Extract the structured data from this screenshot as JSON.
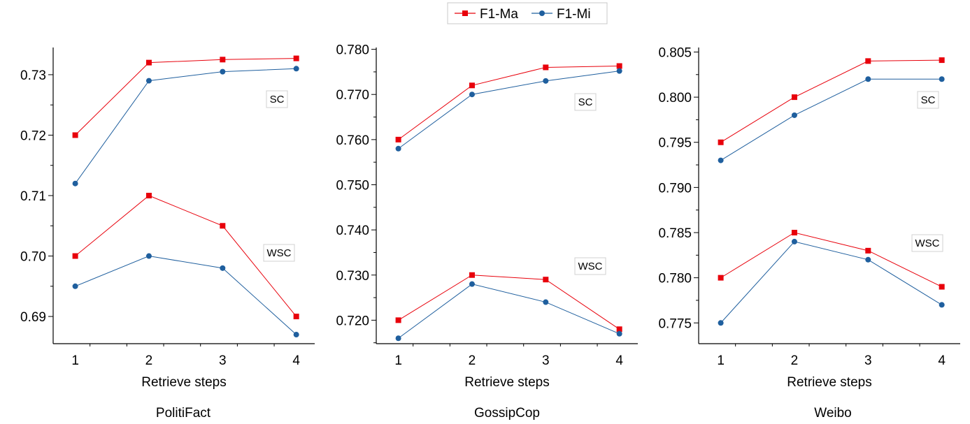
{
  "legend": {
    "items": [
      {
        "label": "F1-Ma",
        "color": "#e8000b",
        "marker": "square"
      },
      {
        "label": "F1-Mi",
        "color": "#1f5f9e",
        "marker": "circle"
      }
    ],
    "placement": "top-center"
  },
  "chart_data": [
    {
      "type": "line",
      "caption": "PolitiFact",
      "xlabel": "Retrieve steps",
      "ylabel": "",
      "x": [
        1,
        2,
        3,
        4
      ],
      "xlim": [
        0.7,
        4.25
      ],
      "ylim": [
        0.6855,
        0.7345
      ],
      "yticks": [
        "0.69",
        "0.70",
        "0.71",
        "0.72",
        "0.73"
      ],
      "grid": false,
      "groups": [
        {
          "label": "SC",
          "series": [
            {
              "name": "F1-Ma",
              "values": [
                0.72,
                0.732,
                0.7325,
                0.7327
              ]
            },
            {
              "name": "F1-Mi",
              "values": [
                0.712,
                0.729,
                0.7305,
                0.731
              ]
            }
          ]
        },
        {
          "label": "WSC",
          "series": [
            {
              "name": "F1-Ma",
              "values": [
                0.7,
                0.71,
                0.705,
                0.69
              ]
            },
            {
              "name": "F1-Mi",
              "values": [
                0.695,
                0.7,
                0.698,
                0.687
              ]
            }
          ]
        }
      ]
    },
    {
      "type": "line",
      "caption": "GossipCop",
      "xlabel": "Retrieve steps",
      "ylabel": "",
      "x": [
        1,
        2,
        3,
        4
      ],
      "xlim": [
        0.7,
        4.25
      ],
      "ylim": [
        0.7148,
        0.7804
      ],
      "yticks": [
        "0.720",
        "0.730",
        "0.740",
        "0.750",
        "0.760",
        "0.770",
        "0.780"
      ],
      "grid": false,
      "groups": [
        {
          "label": "SC",
          "series": [
            {
              "name": "F1-Ma",
              "values": [
                0.76,
                0.772,
                0.776,
                0.7763
              ]
            },
            {
              "name": "F1-Mi",
              "values": [
                0.758,
                0.77,
                0.773,
                0.7752
              ]
            }
          ]
        },
        {
          "label": "WSC",
          "series": [
            {
              "name": "F1-Ma",
              "values": [
                0.72,
                0.73,
                0.729,
                0.718
              ]
            },
            {
              "name": "F1-Mi",
              "values": [
                0.716,
                0.728,
                0.724,
                0.717
              ]
            }
          ]
        }
      ]
    },
    {
      "type": "line",
      "caption": "Weibo",
      "xlabel": "Retrieve steps",
      "ylabel": "",
      "x": [
        1,
        2,
        3,
        4
      ],
      "xlim": [
        0.7,
        4.25
      ],
      "ylim": [
        0.7727,
        0.8055
      ],
      "yticks": [
        "0.775",
        "0.780",
        "0.785",
        "0.790",
        "0.795",
        "0.800",
        "0.805"
      ],
      "grid": false,
      "groups": [
        {
          "label": "SC",
          "series": [
            {
              "name": "F1-Ma",
              "values": [
                0.795,
                0.8,
                0.804,
                0.8041
              ]
            },
            {
              "name": "F1-Mi",
              "values": [
                0.793,
                0.798,
                0.802,
                0.802
              ]
            }
          ]
        },
        {
          "label": "WSC",
          "series": [
            {
              "name": "F1-Ma",
              "values": [
                0.78,
                0.785,
                0.783,
                0.779
              ]
            },
            {
              "name": "F1-Mi",
              "values": [
                0.775,
                0.784,
                0.782,
                0.777
              ]
            }
          ]
        }
      ]
    }
  ]
}
